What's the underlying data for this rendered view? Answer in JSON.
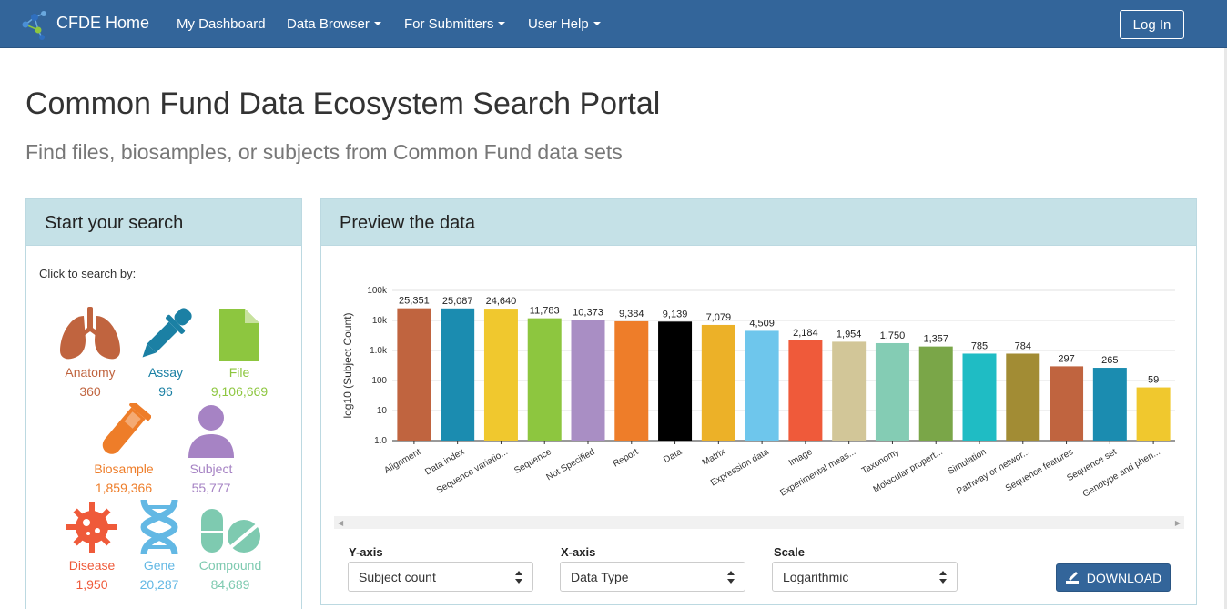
{
  "nav": {
    "brand": "CFDE Home",
    "items": [
      {
        "label": "My Dashboard",
        "dropdown": false
      },
      {
        "label": "Data Browser",
        "dropdown": true
      },
      {
        "label": "For Submitters",
        "dropdown": true
      },
      {
        "label": "User Help",
        "dropdown": true
      }
    ],
    "login": "Log In"
  },
  "header": {
    "title": "Common Fund Data Ecosystem Search Portal",
    "subtitle": "Find files, biosamples, or subjects from Common Fund data sets"
  },
  "search_panel": {
    "title": "Start your search",
    "click_label": "Click to search by:",
    "categories": [
      {
        "name": "Anatomy",
        "count": "360",
        "color": "#c0643f",
        "icon": "lungs-icon"
      },
      {
        "name": "Assay",
        "count": "96",
        "color": "#1b80a4",
        "icon": "dropper-icon"
      },
      {
        "name": "File",
        "count": "9,106,669",
        "color": "#8dc63f",
        "icon": "file-icon"
      },
      {
        "name": "Biosample",
        "count": "1,859,366",
        "color": "#ee7d29",
        "icon": "test-tube-icon"
      },
      {
        "name": "Subject",
        "count": "55,777",
        "color": "#a683c4",
        "icon": "person-icon"
      },
      {
        "name": "Disease",
        "count": "1,950",
        "color": "#ef5a3a",
        "icon": "virus-icon"
      },
      {
        "name": "Gene",
        "count": "20,287",
        "color": "#63b8e4",
        "icon": "dna-icon"
      },
      {
        "name": "Compound",
        "count": "84,689",
        "color": "#7ecab0",
        "icon": "pills-icon"
      }
    ]
  },
  "preview_panel": {
    "title": "Preview the data",
    "controls": {
      "y_label": "Y-axis",
      "y_value": "Subject count",
      "x_label": "X-axis",
      "x_value": "Data Type",
      "scale_label": "Scale",
      "scale_value": "Logarithmic",
      "download": "DOWNLOAD"
    }
  },
  "chart_data": {
    "type": "bar",
    "ylabel": "log10 (Subject Count)",
    "xlabel": "",
    "yscale": "log",
    "ylim": [
      1,
      100000
    ],
    "ytick_labels": [
      "1.0",
      "10",
      "100",
      "1.0k",
      "10k",
      "100k"
    ],
    "grid": true,
    "categories": [
      "Alignment",
      "Data index",
      "Sequence variatio...",
      "Sequence",
      "Not Specified",
      "Report",
      "Data",
      "Matrix",
      "Expression data",
      "Image",
      "Experimental meas...",
      "Taxonomy",
      "Molecular propert...",
      "Simulation",
      "Pathway or networ...",
      "Sequence features",
      "Sequence set",
      "Genotype and phen..."
    ],
    "values": [
      25351,
      25087,
      24640,
      11783,
      10373,
      9384,
      9139,
      7079,
      4509,
      2184,
      1954,
      1750,
      1357,
      785,
      784,
      297,
      265,
      59
    ],
    "value_labels": [
      "25,351",
      "25,087",
      "24,640",
      "11,783",
      "10,373",
      "9,384",
      "9,139",
      "7,079",
      "4,509",
      "2,184",
      "1,954",
      "1,750",
      "1,357",
      "785",
      "784",
      "297",
      "265",
      "59"
    ],
    "colors": [
      "#c0643f",
      "#1b8cb0",
      "#f0c82e",
      "#8dc63f",
      "#a98ec4",
      "#ee7d29",
      "#000000",
      "#ecb128",
      "#6ec6ec",
      "#ef5a3a",
      "#d2c698",
      "#84ccb4",
      "#7aa648",
      "#1fbcc4",
      "#a28c34",
      "#c0643f",
      "#1b8cb0",
      "#f0c82e"
    ]
  }
}
